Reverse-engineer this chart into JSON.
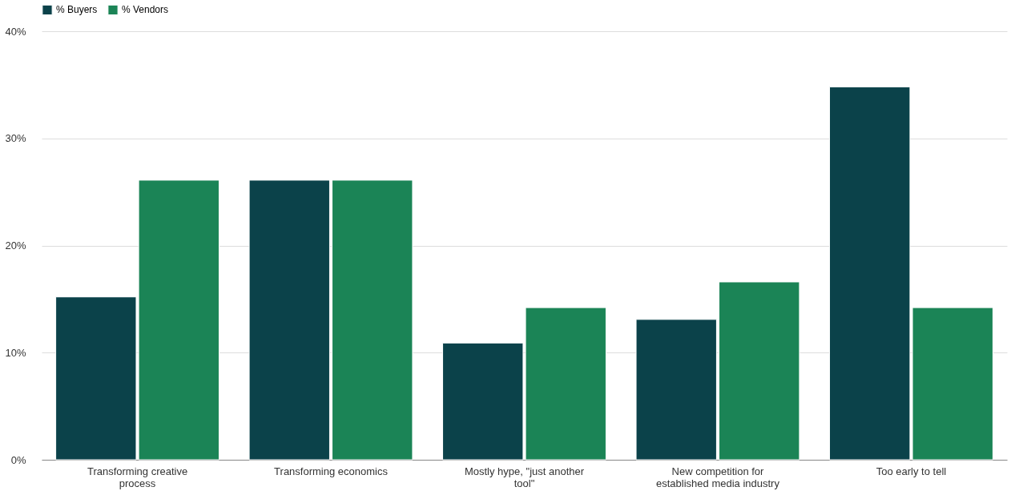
{
  "chart_data": {
    "type": "bar",
    "categories": [
      "Transforming creative process",
      "Transforming economics",
      "Mostly hype, \"just another tool\"",
      "New competition for established media industry",
      "Too early to tell"
    ],
    "series": [
      {
        "name": "% Buyers",
        "color": "#0b424a",
        "values": [
          15.2,
          26.1,
          10.9,
          13.1,
          34.8
        ]
      },
      {
        "name": "% Vendors",
        "color": "#1b8456",
        "values": [
          26.1,
          26.1,
          14.2,
          16.6,
          14.2
        ]
      }
    ],
    "ylim": [
      0,
      40
    ],
    "yticks": [
      {
        "value": 0,
        "label": "0%"
      },
      {
        "value": 10,
        "label": "10%"
      },
      {
        "value": 20,
        "label": "20%"
      },
      {
        "value": 30,
        "label": "30%"
      },
      {
        "value": 40,
        "label": "40%"
      }
    ],
    "grid": "y",
    "legend": "top"
  }
}
